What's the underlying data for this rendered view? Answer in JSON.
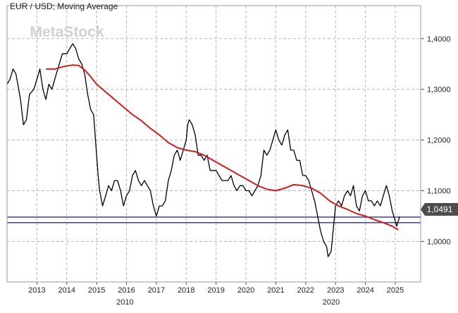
{
  "title": "EUR / USD; Moving Average",
  "watermark": "MetaStock",
  "price_marker": "1,0491",
  "colors": {
    "price": "#000000",
    "moving_average": "#cc1f1f",
    "support_lines": "#2a2aa8",
    "grid": "#b5b5b5",
    "marker_bg": "#4d4d4d",
    "marker_text": "#ffffff",
    "watermark": "#d0d0d0"
  },
  "chart_data": {
    "type": "line",
    "title": "EUR / USD; Moving Average",
    "xlabel": "",
    "ylabel": "",
    "x_range": [
      2012.0,
      2025.85
    ],
    "ylim": [
      0.92,
      1.465
    ],
    "grid": true,
    "decade_labels": [
      {
        "label": "2010",
        "x": 2015.95
      },
      {
        "label": "2020",
        "x": 2022.85
      }
    ],
    "x_ticks": [
      {
        "label": "2013",
        "x": 2013.0
      },
      {
        "label": "2014",
        "x": 2014.0
      },
      {
        "label": "2015",
        "x": 2015.0
      },
      {
        "label": "2016",
        "x": 2016.0
      },
      {
        "label": "2017",
        "x": 2017.0
      },
      {
        "label": "2018",
        "x": 2018.0
      },
      {
        "label": "2019",
        "x": 2019.0
      },
      {
        "label": "2020",
        "x": 2020.0
      },
      {
        "label": "2021",
        "x": 2021.0
      },
      {
        "label": "2022",
        "x": 2022.0
      },
      {
        "label": "2023",
        "x": 2023.0
      },
      {
        "label": "2024",
        "x": 2024.0
      },
      {
        "label": "2025",
        "x": 2025.0
      }
    ],
    "y_ticks": [
      {
        "label": "1,4000",
        "y": 1.4
      },
      {
        "label": "1,3000",
        "y": 1.3
      },
      {
        "label": "1,2000",
        "y": 1.2
      },
      {
        "label": "1,1000",
        "y": 1.1
      },
      {
        "label": "1,0000",
        "y": 1.0
      }
    ],
    "horizontal_lines": [
      {
        "y": 1.048
      },
      {
        "y": 1.037
      }
    ],
    "series": [
      {
        "style": "price",
        "points": [
          [
            2012.0,
            1.31
          ],
          [
            2012.1,
            1.32
          ],
          [
            2012.2,
            1.34
          ],
          [
            2012.3,
            1.33
          ],
          [
            2012.45,
            1.28
          ],
          [
            2012.55,
            1.23
          ],
          [
            2012.65,
            1.24
          ],
          [
            2012.75,
            1.29
          ],
          [
            2012.9,
            1.3
          ],
          [
            2013.0,
            1.32
          ],
          [
            2013.1,
            1.34
          ],
          [
            2013.2,
            1.3
          ],
          [
            2013.3,
            1.28
          ],
          [
            2013.4,
            1.31
          ],
          [
            2013.5,
            1.3
          ],
          [
            2013.65,
            1.33
          ],
          [
            2013.75,
            1.35
          ],
          [
            2013.85,
            1.37
          ],
          [
            2014.0,
            1.37
          ],
          [
            2014.1,
            1.38
          ],
          [
            2014.2,
            1.39
          ],
          [
            2014.3,
            1.38
          ],
          [
            2014.4,
            1.36
          ],
          [
            2014.5,
            1.35
          ],
          [
            2014.6,
            1.33
          ],
          [
            2014.7,
            1.29
          ],
          [
            2014.8,
            1.26
          ],
          [
            2014.9,
            1.25
          ],
          [
            2015.0,
            1.17
          ],
          [
            2015.05,
            1.13
          ],
          [
            2015.1,
            1.1
          ],
          [
            2015.2,
            1.07
          ],
          [
            2015.3,
            1.09
          ],
          [
            2015.4,
            1.11
          ],
          [
            2015.5,
            1.1
          ],
          [
            2015.6,
            1.12
          ],
          [
            2015.7,
            1.12
          ],
          [
            2015.8,
            1.1
          ],
          [
            2015.9,
            1.07
          ],
          [
            2016.0,
            1.09
          ],
          [
            2016.1,
            1.1
          ],
          [
            2016.2,
            1.13
          ],
          [
            2016.3,
            1.14
          ],
          [
            2016.4,
            1.12
          ],
          [
            2016.5,
            1.11
          ],
          [
            2016.6,
            1.12
          ],
          [
            2016.7,
            1.11
          ],
          [
            2016.8,
            1.1
          ],
          [
            2016.9,
            1.07
          ],
          [
            2017.0,
            1.05
          ],
          [
            2017.1,
            1.07
          ],
          [
            2017.2,
            1.07
          ],
          [
            2017.3,
            1.08
          ],
          [
            2017.4,
            1.12
          ],
          [
            2017.5,
            1.14
          ],
          [
            2017.6,
            1.17
          ],
          [
            2017.7,
            1.18
          ],
          [
            2017.8,
            1.16
          ],
          [
            2017.9,
            1.18
          ],
          [
            2018.0,
            1.2
          ],
          [
            2018.05,
            1.23
          ],
          [
            2018.1,
            1.24
          ],
          [
            2018.2,
            1.23
          ],
          [
            2018.3,
            1.21
          ],
          [
            2018.4,
            1.17
          ],
          [
            2018.5,
            1.17
          ],
          [
            2018.6,
            1.16
          ],
          [
            2018.7,
            1.17
          ],
          [
            2018.8,
            1.14
          ],
          [
            2018.9,
            1.14
          ],
          [
            2019.0,
            1.14
          ],
          [
            2019.1,
            1.13
          ],
          [
            2019.2,
            1.12
          ],
          [
            2019.3,
            1.12
          ],
          [
            2019.4,
            1.12
          ],
          [
            2019.5,
            1.13
          ],
          [
            2019.6,
            1.11
          ],
          [
            2019.7,
            1.1
          ],
          [
            2019.8,
            1.11
          ],
          [
            2019.9,
            1.11
          ],
          [
            2020.0,
            1.1
          ],
          [
            2020.1,
            1.1
          ],
          [
            2020.2,
            1.09
          ],
          [
            2020.3,
            1.1
          ],
          [
            2020.4,
            1.11
          ],
          [
            2020.5,
            1.13
          ],
          [
            2020.6,
            1.18
          ],
          [
            2020.7,
            1.17
          ],
          [
            2020.8,
            1.18
          ],
          [
            2020.9,
            1.2
          ],
          [
            2021.0,
            1.22
          ],
          [
            2021.1,
            1.2
          ],
          [
            2021.2,
            1.19
          ],
          [
            2021.3,
            1.21
          ],
          [
            2021.4,
            1.22
          ],
          [
            2021.5,
            1.18
          ],
          [
            2021.6,
            1.18
          ],
          [
            2021.7,
            1.16
          ],
          [
            2021.8,
            1.16
          ],
          [
            2021.9,
            1.13
          ],
          [
            2022.0,
            1.13
          ],
          [
            2022.1,
            1.12
          ],
          [
            2022.2,
            1.1
          ],
          [
            2022.3,
            1.08
          ],
          [
            2022.4,
            1.05
          ],
          [
            2022.5,
            1.02
          ],
          [
            2022.6,
            1.0
          ],
          [
            2022.7,
            0.99
          ],
          [
            2022.75,
            0.97
          ],
          [
            2022.85,
            0.98
          ],
          [
            2022.95,
            1.04
          ],
          [
            2023.0,
            1.07
          ],
          [
            2023.1,
            1.08
          ],
          [
            2023.2,
            1.07
          ],
          [
            2023.3,
            1.09
          ],
          [
            2023.4,
            1.1
          ],
          [
            2023.5,
            1.09
          ],
          [
            2023.6,
            1.11
          ],
          [
            2023.7,
            1.07
          ],
          [
            2023.8,
            1.06
          ],
          [
            2023.9,
            1.09
          ],
          [
            2024.0,
            1.1
          ],
          [
            2024.1,
            1.08
          ],
          [
            2024.2,
            1.08
          ],
          [
            2024.3,
            1.07
          ],
          [
            2024.4,
            1.08
          ],
          [
            2024.5,
            1.07
          ],
          [
            2024.6,
            1.09
          ],
          [
            2024.7,
            1.11
          ],
          [
            2024.8,
            1.09
          ],
          [
            2024.9,
            1.06
          ],
          [
            2025.0,
            1.04
          ],
          [
            2025.05,
            1.03
          ],
          [
            2025.1,
            1.04
          ],
          [
            2025.15,
            1.049
          ]
        ]
      },
      {
        "style": "moving_average",
        "points": [
          [
            2013.3,
            1.34
          ],
          [
            2013.6,
            1.34
          ],
          [
            2013.9,
            1.345
          ],
          [
            2014.2,
            1.348
          ],
          [
            2014.4,
            1.347
          ],
          [
            2014.6,
            1.338
          ],
          [
            2014.8,
            1.325
          ],
          [
            2015.0,
            1.31
          ],
          [
            2015.3,
            1.295
          ],
          [
            2015.6,
            1.28
          ],
          [
            2015.9,
            1.265
          ],
          [
            2016.2,
            1.25
          ],
          [
            2016.5,
            1.238
          ],
          [
            2016.8,
            1.223
          ],
          [
            2017.1,
            1.21
          ],
          [
            2017.4,
            1.195
          ],
          [
            2017.7,
            1.185
          ],
          [
            2018.0,
            1.18
          ],
          [
            2018.3,
            1.177
          ],
          [
            2018.6,
            1.17
          ],
          [
            2018.9,
            1.16
          ],
          [
            2019.2,
            1.15
          ],
          [
            2019.5,
            1.14
          ],
          [
            2019.8,
            1.13
          ],
          [
            2020.1,
            1.12
          ],
          [
            2020.4,
            1.11
          ],
          [
            2020.7,
            1.103
          ],
          [
            2021.0,
            1.1
          ],
          [
            2021.3,
            1.105
          ],
          [
            2021.6,
            1.112
          ],
          [
            2021.9,
            1.11
          ],
          [
            2022.2,
            1.105
          ],
          [
            2022.5,
            1.095
          ],
          [
            2022.8,
            1.08
          ],
          [
            2023.1,
            1.07
          ],
          [
            2023.4,
            1.063
          ],
          [
            2023.7,
            1.055
          ],
          [
            2024.0,
            1.05
          ],
          [
            2024.3,
            1.043
          ],
          [
            2024.6,
            1.037
          ],
          [
            2024.9,
            1.03
          ],
          [
            2025.1,
            1.023
          ]
        ]
      }
    ]
  }
}
